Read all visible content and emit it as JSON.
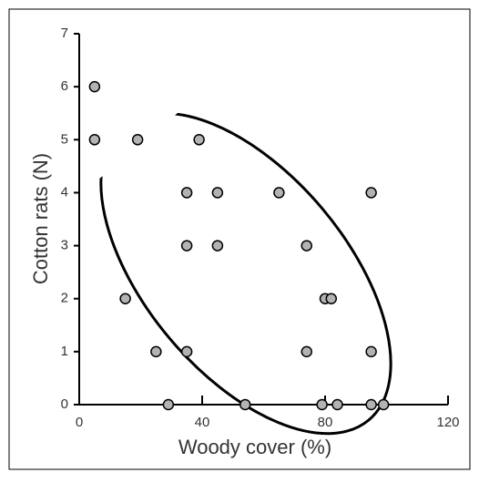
{
  "chart_data": {
    "type": "scatter",
    "x_label": "Woody cover (%)",
    "y_label": "Cotton rats (N)",
    "x": [
      5,
      5,
      19,
      39,
      35,
      45,
      65,
      95,
      35,
      45,
      74,
      80,
      82,
      15,
      25,
      35,
      74,
      95,
      29,
      54,
      79,
      84,
      95,
      99
    ],
    "values": [
      6,
      5,
      5,
      5,
      4,
      4,
      4,
      4,
      3,
      3,
      3,
      2,
      2,
      2,
      1,
      1,
      1,
      1,
      0,
      0,
      0,
      0,
      0,
      0
    ],
    "color": "#b3b3b3",
    "xlim": [
      0,
      120
    ],
    "xticks": [
      0,
      40,
      80,
      120
    ],
    "ylim": [
      0,
      7
    ],
    "yticks": [
      0,
      1,
      2,
      3,
      4,
      5,
      6,
      7
    ]
  }
}
